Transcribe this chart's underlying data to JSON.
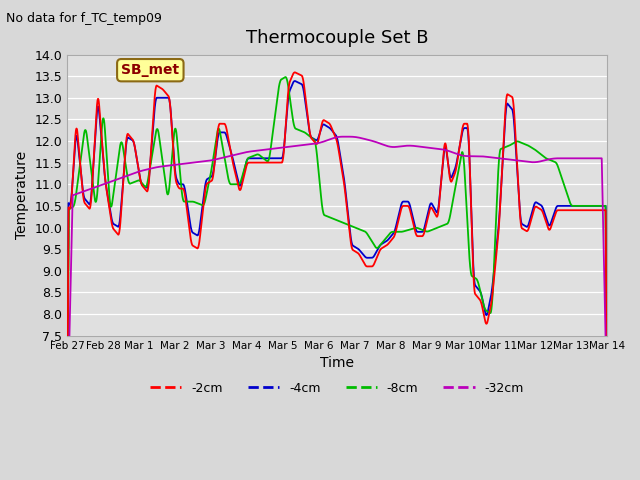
{
  "title": "Thermocouple Set B",
  "subtitle": "No data for f_TC_temp09",
  "xlabel": "Time",
  "ylabel": "Temperature",
  "ylim": [
    7.5,
    14.0
  ],
  "yticks": [
    7.5,
    8.0,
    8.5,
    9.0,
    9.5,
    10.0,
    10.5,
    11.0,
    11.5,
    12.0,
    12.5,
    13.0,
    13.5,
    14.0
  ],
  "xtick_positions": [
    0,
    1,
    2,
    3,
    4,
    5,
    6,
    7,
    8,
    9,
    10,
    11,
    12,
    13,
    14,
    15
  ],
  "xtick_labels": [
    "Feb 27",
    "Feb 28",
    "Mar 1",
    "Mar 2",
    "Mar 3",
    "Mar 4",
    "Mar 5",
    "Mar 6",
    "Mar 7",
    "Mar 8",
    "Mar 9",
    "Mar 10",
    "Mar 11",
    "Mar 12",
    "Mar 13",
    "Mar 14"
  ],
  "legend_labels": [
    "-2cm",
    "-4cm",
    "-8cm",
    "-32cm"
  ],
  "legend_colors": [
    "#ff0000",
    "#0000cc",
    "#00bb00",
    "#bb00bb"
  ],
  "background_color": "#d8d8d8",
  "plot_bg_color": "#e0e0e0",
  "grid_color": "#ffffff",
  "sb_met_label": "SB_met",
  "sb_met_box_color": "#ffff99",
  "sb_met_text_color": "#8b0000",
  "xlim": [
    0,
    15
  ]
}
